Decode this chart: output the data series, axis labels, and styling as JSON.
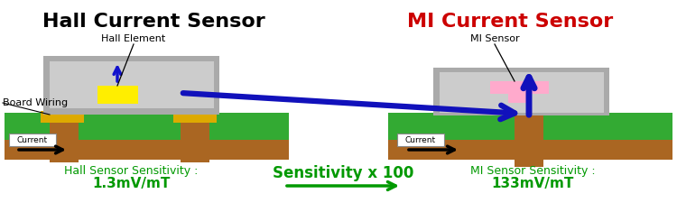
{
  "title_left": "Hall Current Sensor",
  "title_right": "MI Current Sensor",
  "title_left_color": "#000000",
  "title_right_color": "#cc0000",
  "title_fontsize": 16,
  "bg_color": "#ffffff",
  "green_color": "#33aa33",
  "dark_green": "#009900",
  "brown_color": "#aa6622",
  "gray_color": "#aaaaaa",
  "light_gray": "#cccccc",
  "gold_color": "#ddaa00",
  "pink_color": "#ffaacc",
  "blue_arrow_color": "#1111bb",
  "label_hall_element": "Hall Element",
  "label_board_wiring": "Board Wiring",
  "label_mi_sensor": "MI Sensor",
  "label_current_left": "Current",
  "label_current_right": "Current",
  "label_hall_sensitivity_line1": "Hall Sensor Sensitivity :",
  "label_hall_sensitivity_line2": "1.3mV/mT",
  "label_mi_sensitivity_line1": "MI Sensor Sensitivity :",
  "label_mi_sensitivity_line2": "133mV/mT",
  "label_sensitivity_x100": "Sensitivity x 100",
  "sensitivity_color": "#009900",
  "sensitivity_fontsize": 12
}
